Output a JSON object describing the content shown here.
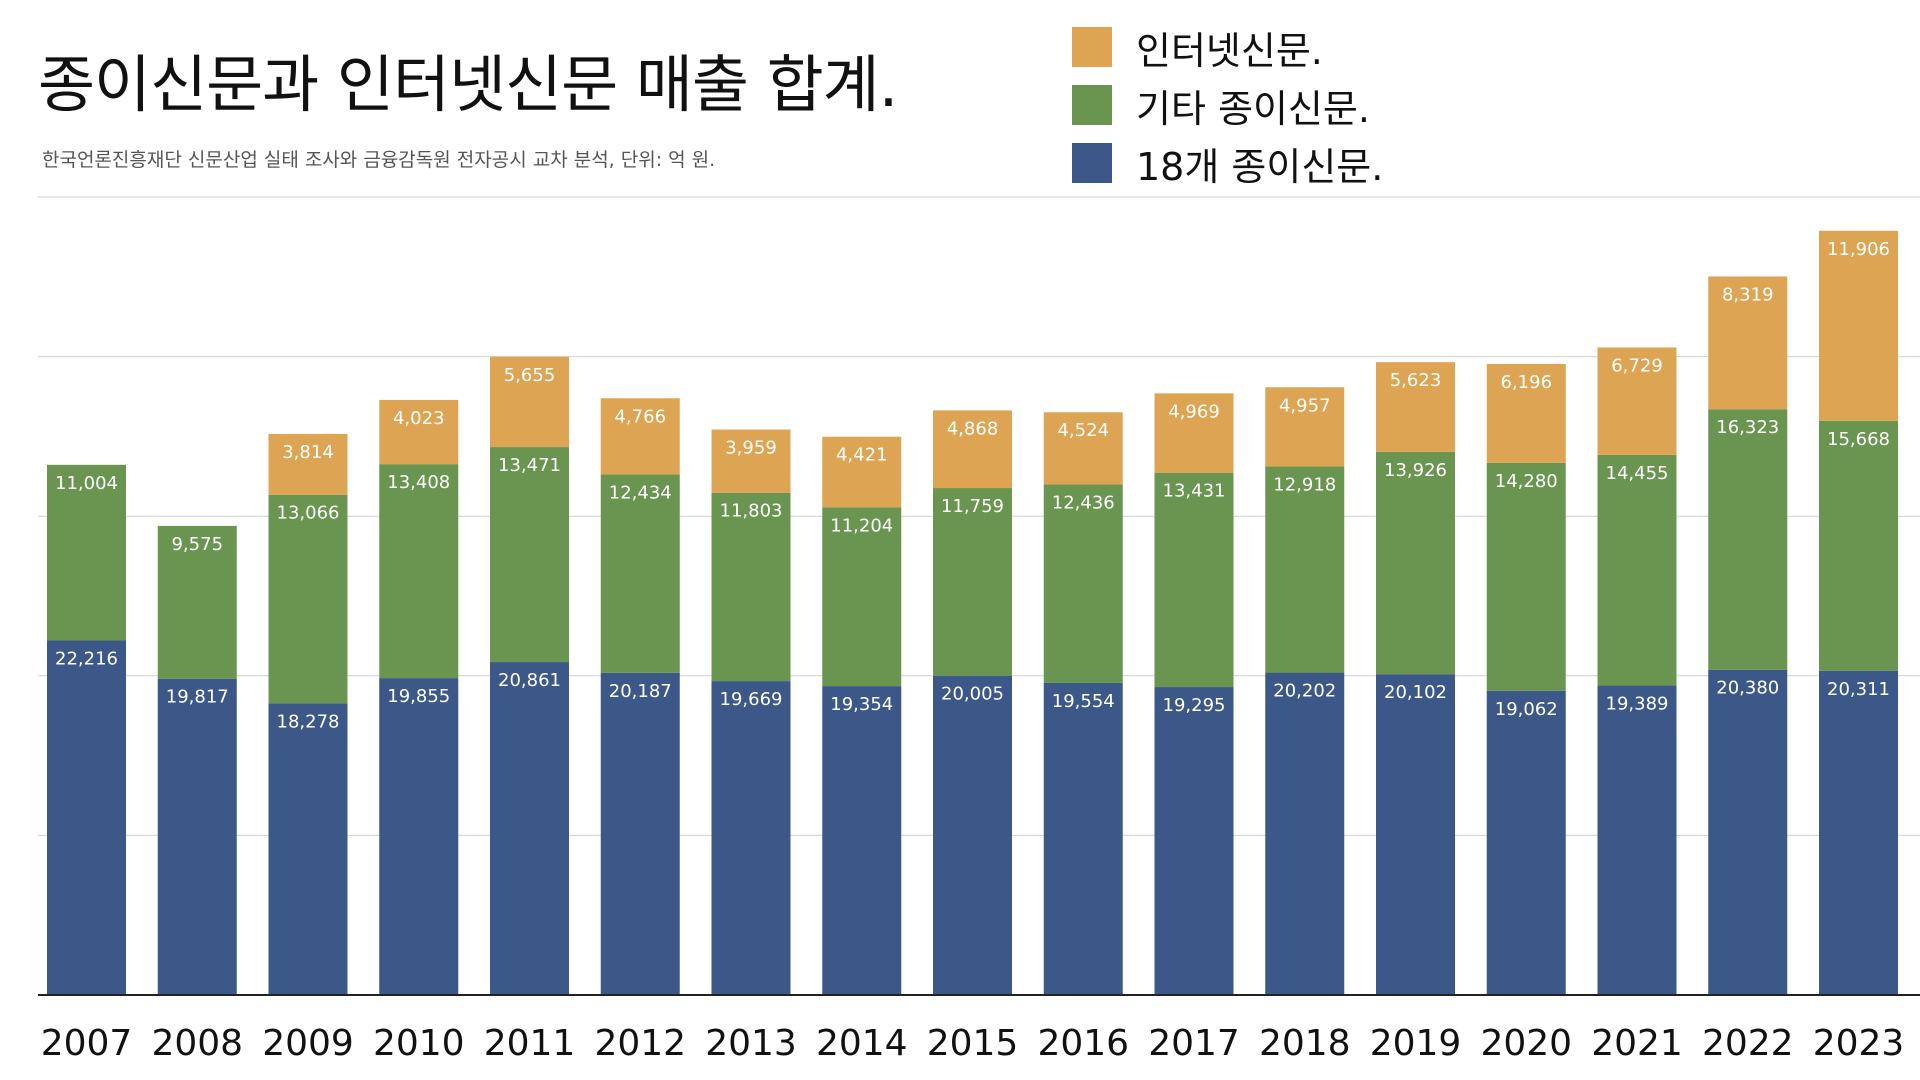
{
  "title": "종이신문과 인터넷신문 매출 합계.",
  "subtitle": "한국언론진흥재단 신문산업 실태 조사와 금융감독원 전자공시 교차 분석, 단위: 억 원.",
  "colors": {
    "paper18": "#3B5888",
    "other_paper": "#6A9550",
    "internet": "#DDA553",
    "grid": "#CFCFCF",
    "axis": "#222222",
    "label": "#FFFFFF"
  },
  "legend": [
    {
      "key": "internet",
      "label": "인터넷신문."
    },
    {
      "key": "other_paper",
      "label": "기타 종이신문."
    },
    {
      "key": "paper18",
      "label": "18개 종이신문."
    }
  ],
  "chart_data": {
    "type": "bar",
    "stacked": true,
    "categories": [
      "2007",
      "2008",
      "2009",
      "2010",
      "2011",
      "2012",
      "2013",
      "2014",
      "2015",
      "2016",
      "2017",
      "2018",
      "2019",
      "2020",
      "2021",
      "2022",
      "2023"
    ],
    "series": [
      {
        "key": "paper18",
        "name": "18개 종이신문.",
        "values": [
          22216,
          19817,
          18278,
          19855,
          20861,
          20187,
          19669,
          19354,
          20005,
          19554,
          19295,
          20202,
          20102,
          19062,
          19389,
          20380,
          20311
        ]
      },
      {
        "key": "other_paper",
        "name": "기타 종이신문.",
        "values": [
          11004,
          9575,
          13066,
          13408,
          13471,
          12434,
          11803,
          11204,
          11759,
          12436,
          13431,
          12918,
          13926,
          14280,
          14455,
          16323,
          15668
        ]
      },
      {
        "key": "internet",
        "name": "인터넷신문.",
        "values": [
          null,
          null,
          3814,
          4023,
          5655,
          4766,
          3959,
          4421,
          4868,
          4524,
          4969,
          4957,
          5623,
          6196,
          6729,
          8319,
          11906
        ]
      }
    ],
    "ylim": [
      0,
      50000
    ],
    "grid": true,
    "legend_position": "top-right",
    "xlabel": "",
    "ylabel": ""
  }
}
